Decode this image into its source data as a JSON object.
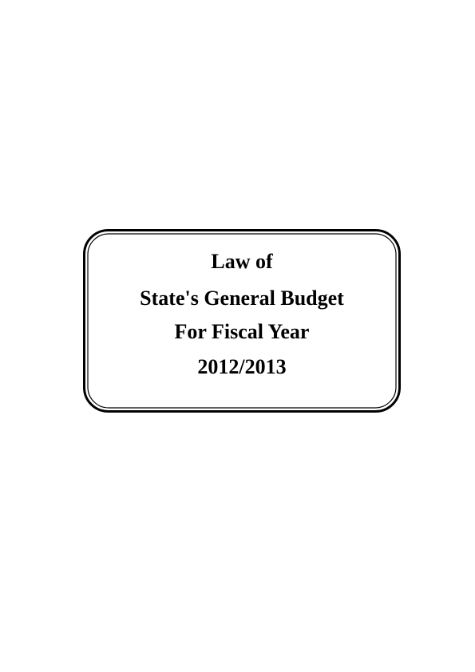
{
  "document": {
    "title_lines": [
      "Law of",
      "State's General Budget",
      "For Fiscal Year",
      "2012/2013"
    ]
  },
  "colors": {
    "background": "#ffffff",
    "text": "#000000",
    "frame": "#000000"
  }
}
